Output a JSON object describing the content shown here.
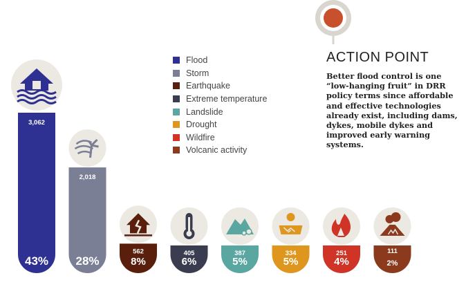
{
  "chart_data": {
    "type": "bar",
    "title": "",
    "categories": [
      "Flood",
      "Storm",
      "Earthquake",
      "Extreme temperature",
      "Landslide",
      "Drought",
      "Wildfire",
      "Volcanic activity"
    ],
    "values": [
      3062,
      2018,
      562,
      405,
      387,
      334,
      251,
      111
    ],
    "value_labels": [
      "3,062",
      "2,018",
      "562",
      "405",
      "387",
      "334",
      "251",
      "111"
    ],
    "percent_labels": [
      "43%",
      "28%",
      "8%",
      "6%",
      "5%",
      "5%",
      "4%",
      "2%"
    ],
    "colors": [
      "#2e3192",
      "#7a7f96",
      "#5a1e0c",
      "#3a3d4f",
      "#5aa6a0",
      "#df961f",
      "#cf3426",
      "#8c3a1e"
    ],
    "icons": [
      "house-flood-icon",
      "storm-wind-icon",
      "earthquake-house-icon",
      "thermometer-icon",
      "landslide-icon",
      "drought-sun-icon",
      "wildfire-icon",
      "volcano-icon"
    ],
    "ylim": [
      0,
      3062
    ],
    "legend_position": "top-center"
  },
  "action_point": {
    "title": "ACTION POINT",
    "body": "Better flood control is one “low-hanging fruit” in DRR policy terms since affordable and effective technologies already exist, including dams, dykes, mobile dykes and improved early warning systems."
  }
}
